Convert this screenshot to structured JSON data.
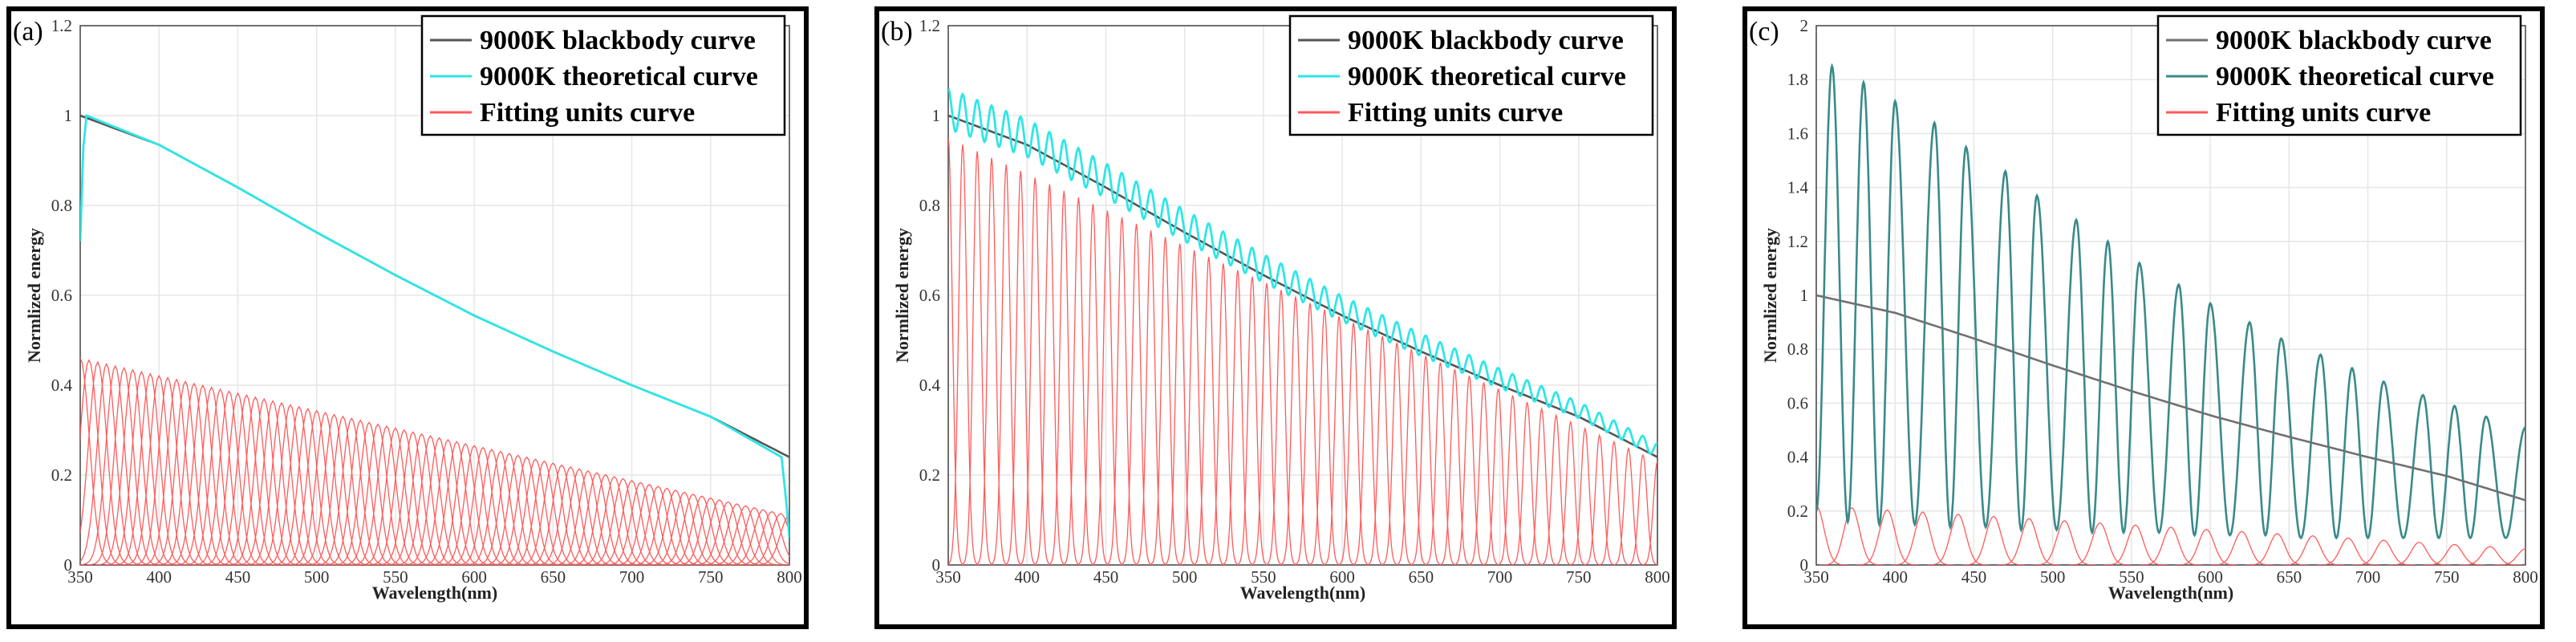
{
  "chart_data": [
    {
      "type": "line",
      "panel_label": "(a)",
      "xlabel": "Wavelength(nm)",
      "ylabel": "Normlized energy",
      "xlim": [
        350,
        800
      ],
      "ylim": [
        0,
        1.2
      ],
      "xticks": [
        350,
        400,
        450,
        500,
        550,
        600,
        650,
        700,
        750,
        800
      ],
      "yticks": [
        0,
        0.2,
        0.4,
        0.6,
        0.8,
        1,
        1.2
      ],
      "grid": true,
      "legend": [
        "9000K blackbody curve",
        "9000K theoretical curve",
        "Fitting units curve"
      ],
      "legend_position": "top-right",
      "series": [
        {
          "name": "9000K blackbody curve",
          "color": "#555555",
          "x": [
            350,
            400,
            450,
            500,
            550,
            600,
            650,
            700,
            750,
            800
          ],
          "values": [
            1.0,
            0.935,
            0.84,
            0.74,
            0.645,
            0.555,
            0.475,
            0.4,
            0.33,
            0.24
          ]
        },
        {
          "name": "9000K theoretical curve",
          "color": "#2ee6e6",
          "x": [
            350,
            352,
            354,
            400,
            450,
            500,
            550,
            600,
            650,
            700,
            750,
            790,
            795,
            798,
            800
          ],
          "values": [
            0.72,
            0.93,
            1.0,
            0.935,
            0.84,
            0.74,
            0.645,
            0.555,
            0.475,
            0.4,
            0.33,
            0.25,
            0.24,
            0.14,
            0.06
          ]
        },
        {
          "name": "Fitting units curve",
          "color": "#ff5a5a",
          "peak_x": [
            350,
            800
          ],
          "peak_values": [
            0.46,
            0.11
          ],
          "unit_count": 82
        }
      ]
    },
    {
      "type": "line",
      "panel_label": "(b)",
      "xlabel": "Wavelength(nm)",
      "ylabel": "Normlized energy",
      "xlim": [
        350,
        800
      ],
      "ylim": [
        0,
        1.2
      ],
      "xticks": [
        350,
        400,
        450,
        500,
        550,
        600,
        650,
        700,
        750,
        800
      ],
      "yticks": [
        0,
        0.2,
        0.4,
        0.6,
        0.8,
        1,
        1.2
      ],
      "grid": true,
      "legend": [
        "9000K blackbody curve",
        "9000K theoretical curve",
        "Fitting units curve"
      ],
      "legend_position": "top-right",
      "series": [
        {
          "name": "9000K blackbody curve",
          "color": "#555555",
          "x": [
            350,
            400,
            450,
            500,
            550,
            600,
            650,
            700,
            750,
            800
          ],
          "values": [
            1.0,
            0.935,
            0.84,
            0.74,
            0.645,
            0.555,
            0.475,
            0.4,
            0.33,
            0.24
          ]
        },
        {
          "name": "9000K theoretical curve",
          "color": "#2ee6e6",
          "peak_x": [
            350,
            800
          ],
          "peak_values": [
            1.06,
            0.26
          ],
          "trough_values": [
            0.97,
            0.23
          ],
          "oscillations": 50
        },
        {
          "name": "Fitting units curve",
          "color": "#ff5a5a",
          "peak_x": [
            350,
            800
          ],
          "peak_values": [
            0.95,
            0.23
          ],
          "unit_count": 50
        }
      ]
    },
    {
      "type": "line",
      "panel_label": "(c)",
      "xlabel": "Wavelength(nm)",
      "ylabel": "Normlized energy",
      "xlim": [
        350,
        800
      ],
      "ylim": [
        0,
        2
      ],
      "xticks": [
        350,
        400,
        450,
        500,
        550,
        600,
        650,
        700,
        750,
        800
      ],
      "yticks": [
        0,
        0.2,
        0.4,
        0.6,
        0.8,
        1,
        1.2,
        1.4,
        1.6,
        1.8,
        2
      ],
      "grid": true,
      "legend": [
        "9000K blackbody curve",
        "9000K theoretical curve",
        "Fitting units curve"
      ],
      "legend_position": "top-right",
      "series": [
        {
          "name": "9000K blackbody curve",
          "color": "#707070",
          "x": [
            350,
            400,
            450,
            500,
            550,
            600,
            650,
            700,
            750,
            800
          ],
          "values": [
            1.0,
            0.935,
            0.84,
            0.74,
            0.645,
            0.555,
            0.475,
            0.4,
            0.33,
            0.24
          ]
        },
        {
          "name": "9000K theoretical curve",
          "color": "#3a8a8a",
          "peak_x": [
            360,
            380,
            400,
            425,
            445,
            470,
            490,
            515,
            535,
            555,
            580,
            600,
            625,
            645,
            670,
            690,
            710,
            735,
            755,
            775,
            800
          ],
          "peak_values": [
            1.85,
            1.79,
            1.72,
            1.64,
            1.55,
            1.46,
            1.37,
            1.28,
            1.2,
            1.12,
            1.04,
            0.97,
            0.9,
            0.84,
            0.78,
            0.73,
            0.68,
            0.63,
            0.59,
            0.55,
            0.51
          ],
          "trough_values": [
            0.16,
            0.16,
            0.15,
            0.15,
            0.14,
            0.14,
            0.13,
            0.13,
            0.12,
            0.12,
            0.12,
            0.11,
            0.11,
            0.11,
            0.1,
            0.1,
            0.1,
            0.1,
            0.1,
            0.1,
            0.1
          ]
        },
        {
          "name": "Fitting units curve",
          "color": "#ff5a5a",
          "peak_x": [
            350,
            800
          ],
          "peak_values": [
            0.22,
            0.06
          ],
          "unit_count": 21
        }
      ]
    }
  ]
}
